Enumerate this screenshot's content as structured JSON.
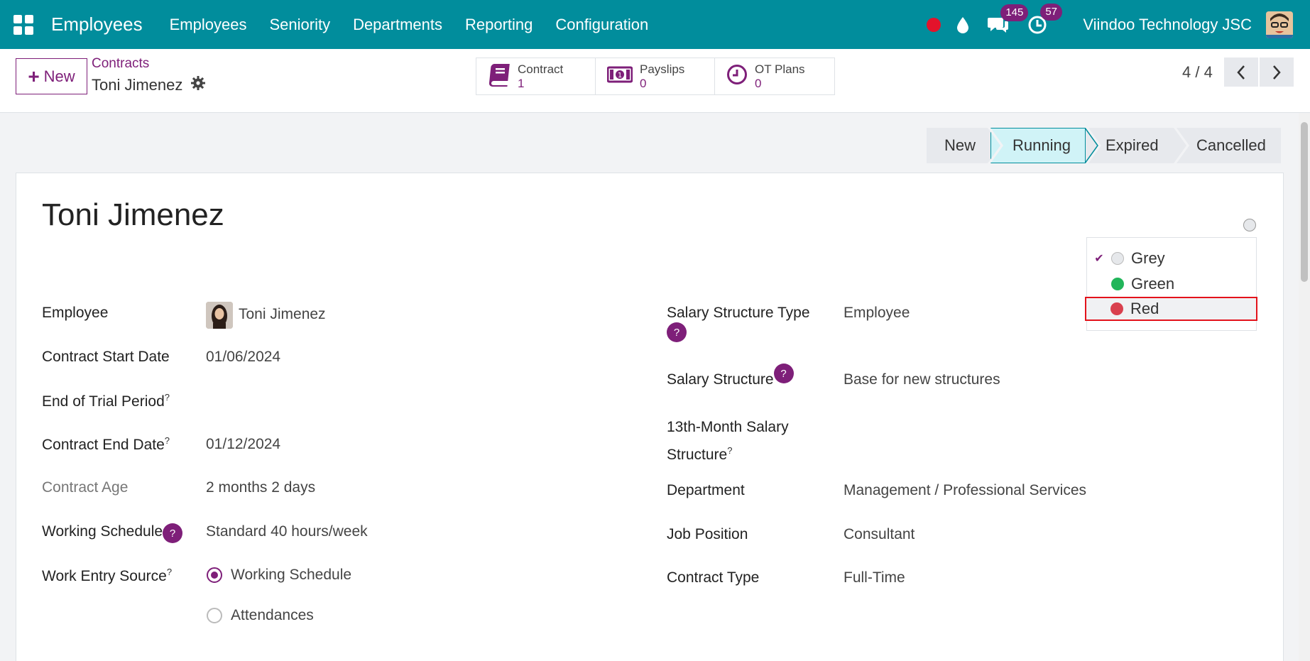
{
  "navbar": {
    "brand": "Employees",
    "menu": [
      "Employees",
      "Seniority",
      "Departments",
      "Reporting",
      "Configuration"
    ],
    "messages_count": "145",
    "activities_count": "57",
    "company": "Viindoo Technology JSC"
  },
  "control": {
    "new_label": "New",
    "breadcrumb_parent": "Contracts",
    "breadcrumb_current": "Toni Jimenez",
    "smart_buttons": [
      {
        "label": "Contract",
        "value": "1"
      },
      {
        "label": "Payslips",
        "value": "0"
      },
      {
        "label": "OT Plans",
        "value": "0"
      }
    ],
    "pager": "4 / 4"
  },
  "status": {
    "stages": [
      "New",
      "Running",
      "Expired",
      "Cancelled"
    ],
    "active": "Running"
  },
  "form": {
    "title": "Toni Jimenez",
    "help_mark": "?",
    "left": {
      "employee_label": "Employee",
      "employee_value": "Toni Jimenez",
      "start_label": "Contract Start Date",
      "start_value": "01/06/2024",
      "trial_label": "End of Trial Period",
      "end_label": "Contract End Date",
      "end_value": "01/12/2024",
      "age_label": "Contract Age",
      "age_value": "2 months 2 days",
      "schedule_label": "Working Schedule",
      "schedule_value": "Standard 40 hours/week",
      "source_label": "Work Entry Source",
      "source_options": [
        "Working Schedule",
        "Attendances"
      ]
    },
    "right": {
      "sst_label": "Salary Structure Type",
      "sst_value": "Employee",
      "ss_label": "Salary Structure",
      "ss_value": "Base for new structures",
      "m13_label_1": "13th-Month Salary",
      "m13_label_2": "Structure",
      "dept_label": "Department",
      "dept_value": "Management / Professional Services",
      "job_label": "Job Position",
      "job_value": "Consultant",
      "type_label": "Contract Type",
      "type_value": "Full-Time"
    }
  },
  "kanban_state": {
    "options": [
      {
        "label": "Grey",
        "color": "#e6e8eb",
        "checked": true
      },
      {
        "label": "Green",
        "color": "#21b55a",
        "checked": false
      },
      {
        "label": "Red",
        "color": "#d9404e",
        "checked": false
      }
    ]
  },
  "colors": {
    "primary": "#018d9c",
    "accent": "#7e1f79"
  }
}
